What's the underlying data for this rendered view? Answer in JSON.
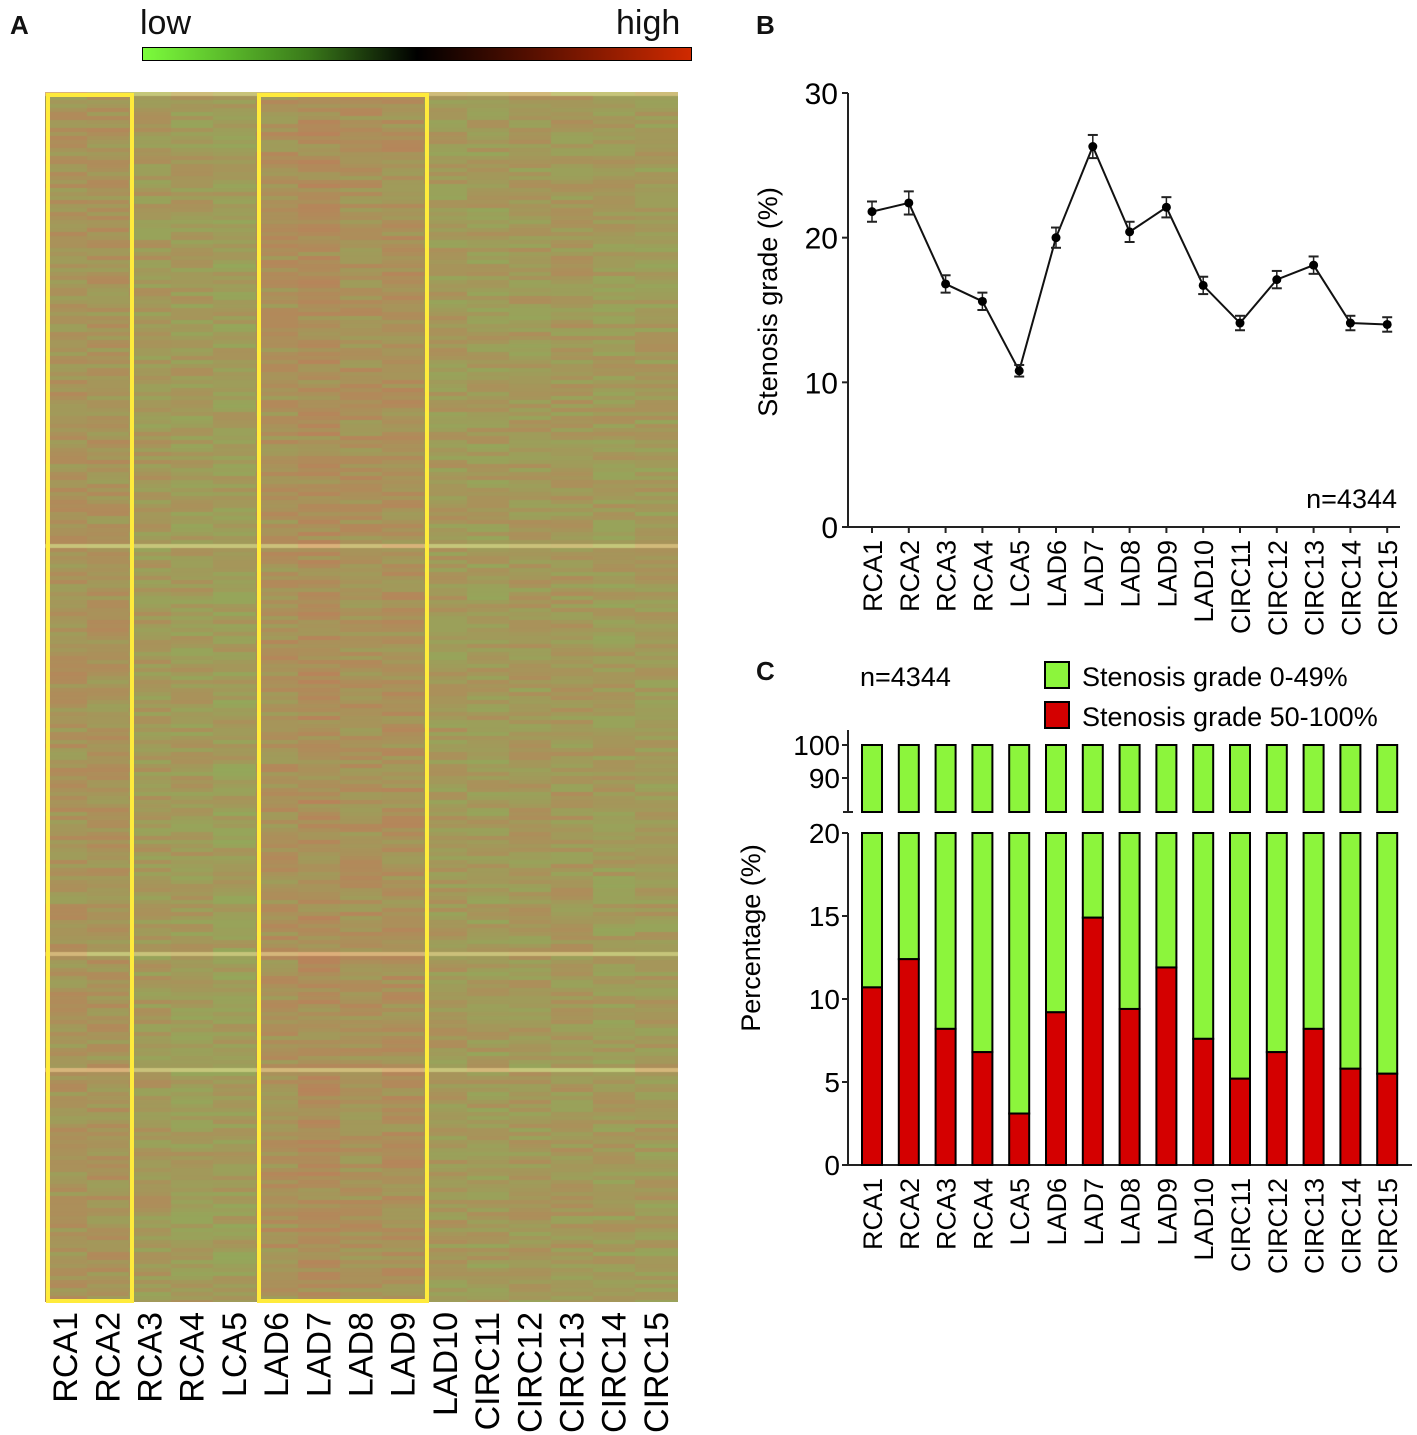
{
  "panels": {
    "a": "A",
    "b": "B",
    "c": "C"
  },
  "colors": {
    "green": "#8cf53c",
    "red": "#d40000",
    "highlight": "#ffeb3b",
    "scale_low": "#7cfc3c",
    "scale_mid": "#000000",
    "scale_high": "#d02a00"
  },
  "heatmap": {
    "scale_low_label": "low",
    "scale_high_label": "high",
    "columns": [
      "RCA1",
      "RCA2",
      "RCA3",
      "RCA4",
      "LCA5",
      "LAD6",
      "LAD7",
      "LAD8",
      "LAD9",
      "LAD10",
      "CIRC11",
      "CIRC12",
      "CIRC13",
      "CIRC14",
      "CIRC15"
    ],
    "highlighted_groups": [
      [
        "RCA1",
        "RCA2"
      ],
      [
        "LAD6",
        "LAD7",
        "LAD8",
        "LAD9"
      ]
    ]
  },
  "chart_data": [
    {
      "type": "line",
      "panel": "B",
      "ylabel": "Stenosis grade (%)",
      "ylim": [
        0,
        30
      ],
      "yticks": [
        0,
        10,
        20,
        30
      ],
      "annotation": "n=4344",
      "categories": [
        "RCA1",
        "RCA2",
        "RCA3",
        "RCA4",
        "LCA5",
        "LAD6",
        "LAD7",
        "LAD8",
        "LAD9",
        "LAD10",
        "CIRC11",
        "CIRC12",
        "CIRC13",
        "CIRC14",
        "CIRC15"
      ],
      "values": [
        21.8,
        22.4,
        16.8,
        15.6,
        10.8,
        20.0,
        26.3,
        20.4,
        22.1,
        16.7,
        14.1,
        17.1,
        18.1,
        14.1,
        14.0
      ],
      "errors": [
        0.7,
        0.8,
        0.6,
        0.6,
        0.4,
        0.7,
        0.8,
        0.7,
        0.7,
        0.6,
        0.5,
        0.6,
        0.6,
        0.5,
        0.5
      ]
    },
    {
      "type": "bar",
      "stacked": true,
      "panel": "C",
      "ylabel": "Percentage (%)",
      "ylim": [
        0,
        100
      ],
      "axis_break": [
        20,
        85
      ],
      "yticks_lower": [
        0,
        5,
        10,
        15,
        20
      ],
      "yticks_upper": [
        90,
        100
      ],
      "annotation": "n=4344",
      "legend": [
        "Stenosis grade 0-49%",
        "Stenosis grade 50-100%"
      ],
      "legend_position": "top-right",
      "categories": [
        "RCA1",
        "RCA2",
        "RCA3",
        "RCA4",
        "LCA5",
        "LAD6",
        "LAD7",
        "LAD8",
        "LAD9",
        "LAD10",
        "CIRC11",
        "CIRC12",
        "CIRC13",
        "CIRC14",
        "CIRC15"
      ],
      "series": [
        {
          "name": "Stenosis grade 50-100%",
          "values": [
            10.7,
            12.4,
            8.2,
            6.8,
            3.1,
            9.2,
            14.9,
            9.4,
            11.9,
            7.6,
            5.2,
            6.8,
            8.2,
            5.8,
            5.5
          ]
        },
        {
          "name": "Stenosis grade 0-49%",
          "values": [
            89.3,
            87.6,
            91.8,
            93.2,
            96.9,
            90.8,
            85.1,
            90.6,
            88.1,
            92.4,
            94.8,
            93.2,
            91.8,
            94.2,
            94.5
          ]
        }
      ]
    }
  ]
}
